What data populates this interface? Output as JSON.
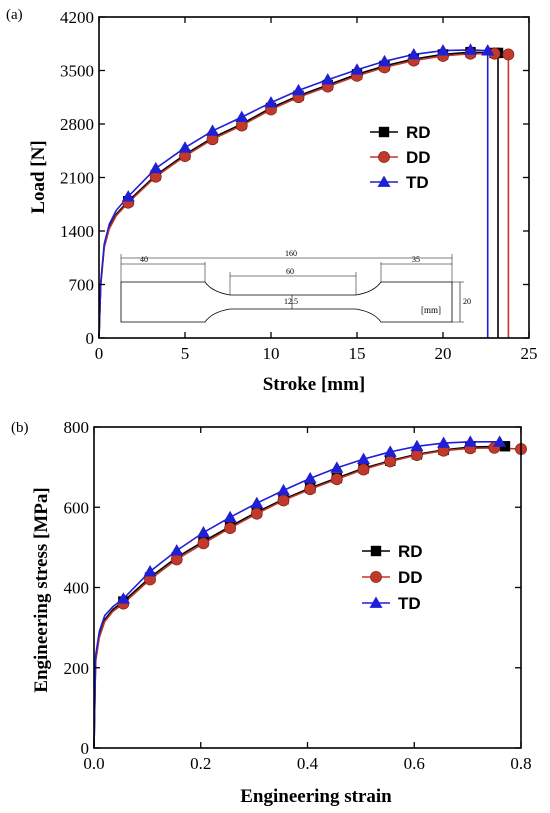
{
  "chart_data": [
    {
      "type": "line",
      "panel_label": "(a)",
      "xlabel": "Stroke [mm]",
      "ylabel": "Load [N]",
      "xlim": [
        0,
        25
      ],
      "ylim": [
        0,
        4200
      ],
      "xticks": [
        0,
        5,
        10,
        15,
        20,
        25
      ],
      "yticks": [
        0,
        700,
        1400,
        2100,
        2800,
        3500,
        4200
      ],
      "legend_position": "right-middle",
      "series": [
        {
          "name": "RD",
          "color": "#000000",
          "marker": "square",
          "x": [
            0,
            0.1,
            0.3,
            0.6,
            1.0,
            1.7,
            3.3,
            5.0,
            6.6,
            8.3,
            10.0,
            11.6,
            13.3,
            15.0,
            16.6,
            18.3,
            20.0,
            21.6,
            23.0,
            23.2,
            23.2
          ],
          "y": [
            0,
            700,
            1200,
            1450,
            1620,
            1790,
            2130,
            2400,
            2620,
            2800,
            3010,
            3170,
            3310,
            3450,
            3560,
            3650,
            3710,
            3740,
            3730,
            3730,
            0
          ]
        },
        {
          "name": "DD",
          "color": "#c0392b",
          "marker": "circle",
          "x": [
            0,
            0.1,
            0.3,
            0.6,
            1.0,
            1.7,
            3.3,
            5.0,
            6.6,
            8.3,
            10.0,
            11.6,
            13.3,
            15.0,
            16.6,
            18.3,
            20.0,
            21.6,
            23.0,
            23.8,
            23.8
          ],
          "y": [
            0,
            680,
            1180,
            1430,
            1600,
            1770,
            2110,
            2380,
            2600,
            2780,
            2990,
            3150,
            3290,
            3430,
            3540,
            3630,
            3690,
            3720,
            3720,
            3710,
            0
          ]
        },
        {
          "name": "TD",
          "color": "#1f1fd6",
          "marker": "triangle",
          "x": [
            0,
            0.1,
            0.3,
            0.6,
            1.0,
            1.7,
            3.3,
            5.0,
            6.6,
            8.3,
            10.0,
            11.6,
            13.3,
            15.0,
            16.6,
            18.3,
            20.0,
            21.6,
            22.6,
            22.6
          ],
          "y": [
            0,
            720,
            1230,
            1490,
            1670,
            1850,
            2220,
            2490,
            2710,
            2890,
            3080,
            3240,
            3380,
            3510,
            3620,
            3710,
            3760,
            3770,
            3760,
            0
          ]
        }
      ],
      "inset": {
        "unit_label": "[mm]",
        "dimensions": [
          "40",
          "160",
          "60",
          "35",
          "12.5",
          "20"
        ]
      }
    },
    {
      "type": "line",
      "panel_label": "(b)",
      "xlabel": "Engineering strain",
      "ylabel": "Engineering stress [MPa]",
      "xlim": [
        0,
        0.8
      ],
      "ylim": [
        0,
        800
      ],
      "xticks": [
        0.0,
        0.2,
        0.4,
        0.6,
        0.8
      ],
      "yticks": [
        0,
        200,
        400,
        600,
        800
      ],
      "legend_position": "right-middle",
      "series": [
        {
          "name": "RD",
          "color": "#000000",
          "marker": "square",
          "x": [
            0,
            0.003,
            0.01,
            0.02,
            0.035,
            0.055,
            0.105,
            0.155,
            0.205,
            0.255,
            0.305,
            0.355,
            0.405,
            0.455,
            0.505,
            0.555,
            0.605,
            0.655,
            0.705,
            0.77
          ],
          "y": [
            0,
            220,
            280,
            320,
            345,
            365,
            425,
            475,
            515,
            552,
            588,
            620,
            648,
            673,
            697,
            716,
            732,
            743,
            750,
            752
          ]
        },
        {
          "name": "DD",
          "color": "#c0392b",
          "marker": "circle",
          "x": [
            0,
            0.003,
            0.01,
            0.02,
            0.035,
            0.055,
            0.105,
            0.155,
            0.205,
            0.255,
            0.305,
            0.355,
            0.405,
            0.455,
            0.505,
            0.555,
            0.605,
            0.655,
            0.705,
            0.75,
            0.8
          ],
          "y": [
            0,
            215,
            275,
            315,
            340,
            360,
            420,
            470,
            510,
            548,
            584,
            617,
            645,
            670,
            694,
            714,
            730,
            741,
            747,
            748,
            745
          ]
        },
        {
          "name": "TD",
          "color": "#1f1fd6",
          "marker": "triangle",
          "x": [
            0,
            0.003,
            0.01,
            0.02,
            0.035,
            0.055,
            0.105,
            0.155,
            0.205,
            0.255,
            0.305,
            0.355,
            0.405,
            0.455,
            0.505,
            0.555,
            0.605,
            0.655,
            0.705,
            0.76
          ],
          "y": [
            0,
            230,
            290,
            330,
            352,
            372,
            440,
            492,
            537,
            575,
            610,
            642,
            672,
            698,
            720,
            738,
            752,
            760,
            763,
            763
          ]
        }
      ]
    }
  ]
}
